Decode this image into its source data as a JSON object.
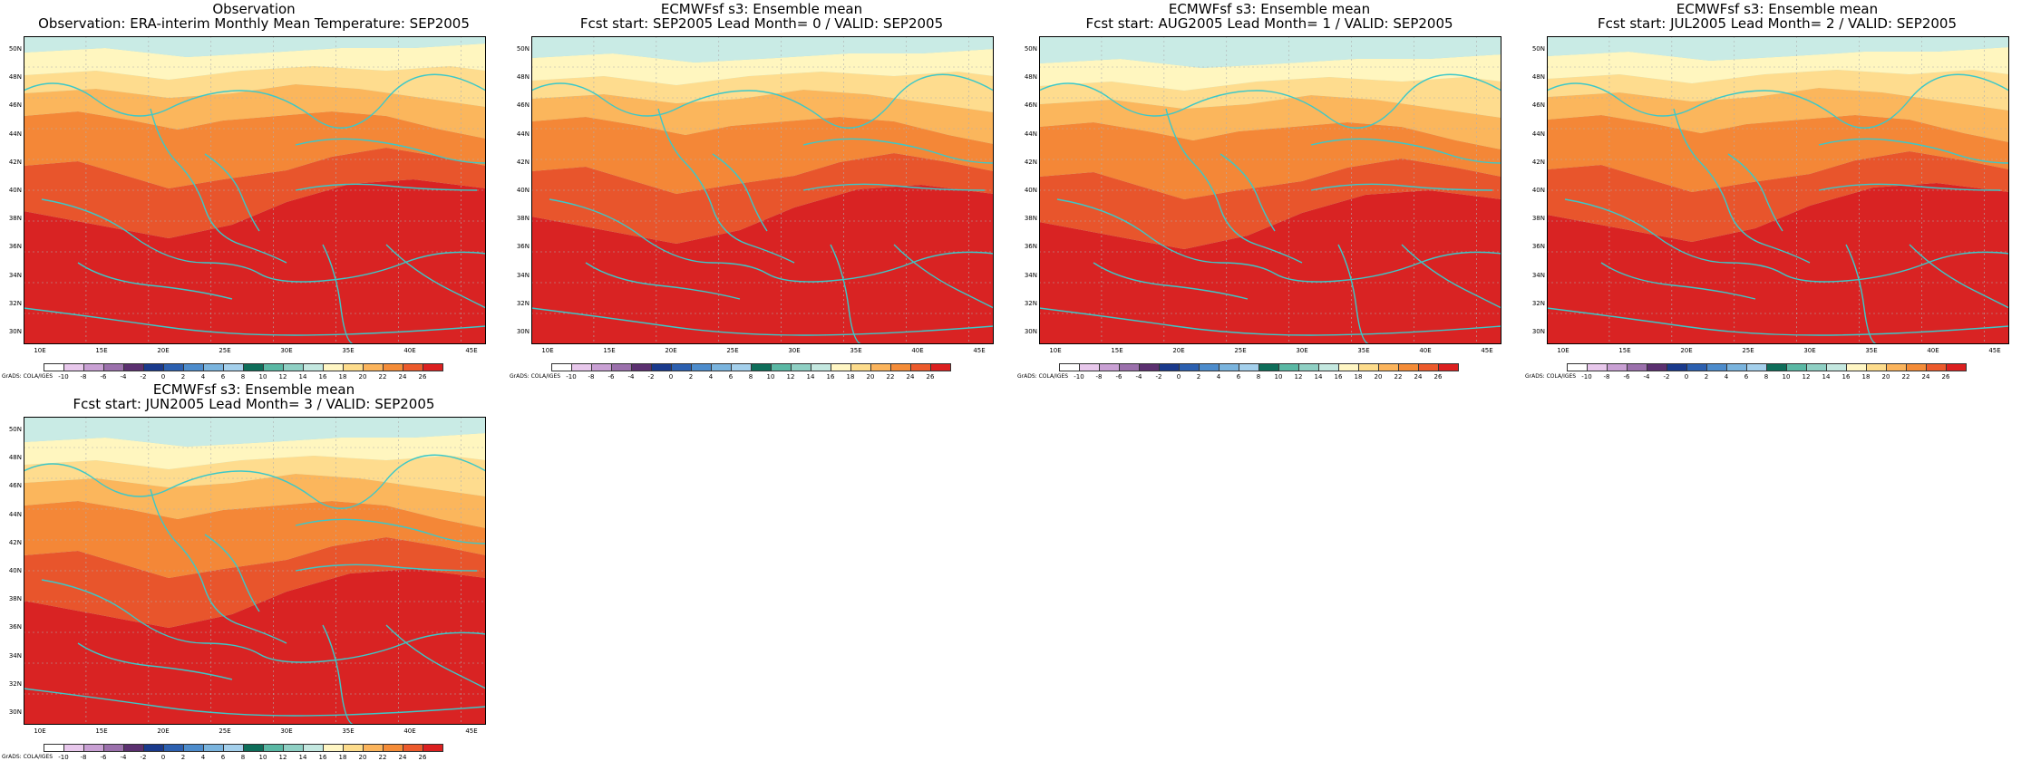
{
  "panels": [
    {
      "title1": "Observation",
      "title2": "Observation: ERA-interim Monthly Mean Temperature: SEP2005"
    },
    {
      "title1": "ECMWFsf s3: Ensemble mean",
      "title2": "Fcst start: SEP2005   Lead Month= 0 / VALID: SEP2005"
    },
    {
      "title1": "ECMWFsf s3: Ensemble mean",
      "title2": "Fcst start: AUG2005   Lead Month= 1 / VALID: SEP2005"
    },
    {
      "title1": "ECMWFsf s3: Ensemble mean",
      "title2": "Fcst start: JUL2005   Lead Month= 2 / VALID: SEP2005"
    },
    {
      "title1": "ECMWFsf s3: Ensemble mean",
      "title2": "Fcst start: JUN2005   Lead Month= 3 / VALID: SEP2005"
    }
  ],
  "lat_labels": [
    "50N",
    "48N",
    "46N",
    "44N",
    "42N",
    "40N",
    "38N",
    "36N",
    "34N",
    "32N",
    "30N"
  ],
  "lon_labels": [
    "10E",
    "15E",
    "20E",
    "25E",
    "30E",
    "35E",
    "40E",
    "45E"
  ],
  "colorbar": {
    "ticks": [
      "-10",
      "-8",
      "-6",
      "-4",
      "-2",
      "0",
      "2",
      "4",
      "6",
      "8",
      "10",
      "12",
      "14",
      "16",
      "18",
      "20",
      "22",
      "24",
      "26"
    ],
    "colors": [
      "#ffffff",
      "#e8c8ec",
      "#c9a0d4",
      "#9b70ac",
      "#5b3070",
      "#1a3a8c",
      "#2c60b0",
      "#4d8ccc",
      "#7ab4de",
      "#a4d0ec",
      "#0e6e5a",
      "#5ab8a4",
      "#8fd0c4",
      "#c4e8e0",
      "#fff6c4",
      "#fddc8c",
      "#fbb45c",
      "#f48c38",
      "#ec5a2c",
      "#dc2020"
    ],
    "credit": "GrADS: COLA/IGES"
  },
  "field_levels": [
    "14-16",
    "16-18",
    "18-20",
    "20-22",
    "22-24",
    "24-26",
    ">26"
  ]
}
